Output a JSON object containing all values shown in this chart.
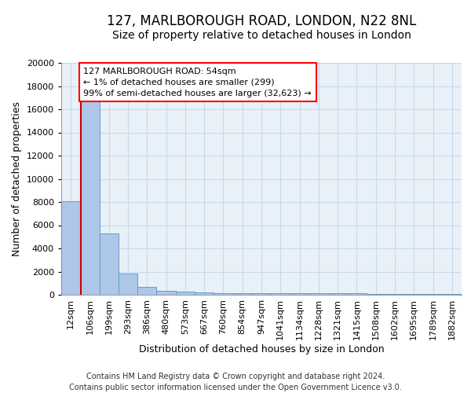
{
  "title": "127, MARLBOROUGH ROAD, LONDON, N22 8NL",
  "subtitle": "Size of property relative to detached houses in London",
  "xlabel": "Distribution of detached houses by size in London",
  "ylabel": "Number of detached properties",
  "bar_labels": [
    "12sqm",
    "106sqm",
    "199sqm",
    "293sqm",
    "386sqm",
    "480sqm",
    "573sqm",
    "667sqm",
    "760sqm",
    "854sqm",
    "947sqm",
    "1041sqm",
    "1134sqm",
    "1228sqm",
    "1321sqm",
    "1415sqm",
    "1508sqm",
    "1602sqm",
    "1695sqm",
    "1789sqm",
    "1882sqm"
  ],
  "bar_values": [
    8100,
    16700,
    5300,
    1850,
    700,
    350,
    300,
    200,
    160,
    150,
    150,
    150,
    140,
    130,
    120,
    110,
    100,
    90,
    80,
    70,
    60
  ],
  "bar_color": "#aec6e8",
  "bar_edge_color": "#5f9fcc",
  "red_line_x": 0.52,
  "annotation_text": "127 MARLBOROUGH ROAD: 54sqm\n← 1% of detached houses are smaller (299)\n99% of semi-detached houses are larger (32,623) →",
  "annotation_box_color": "white",
  "annotation_box_edge_color": "red",
  "red_line_color": "#cc0000",
  "ylim": [
    0,
    20000
  ],
  "yticks": [
    0,
    2000,
    4000,
    6000,
    8000,
    10000,
    12000,
    14000,
    16000,
    18000,
    20000
  ],
  "grid_color": "#c8d8ec",
  "background_color": "#e8f0f8",
  "footer": "Contains HM Land Registry data © Crown copyright and database right 2024.\nContains public sector information licensed under the Open Government Licence v3.0.",
  "title_fontsize": 12,
  "subtitle_fontsize": 10,
  "xlabel_fontsize": 9,
  "ylabel_fontsize": 9,
  "tick_fontsize": 8,
  "annotation_fontsize": 8,
  "footer_fontsize": 7
}
